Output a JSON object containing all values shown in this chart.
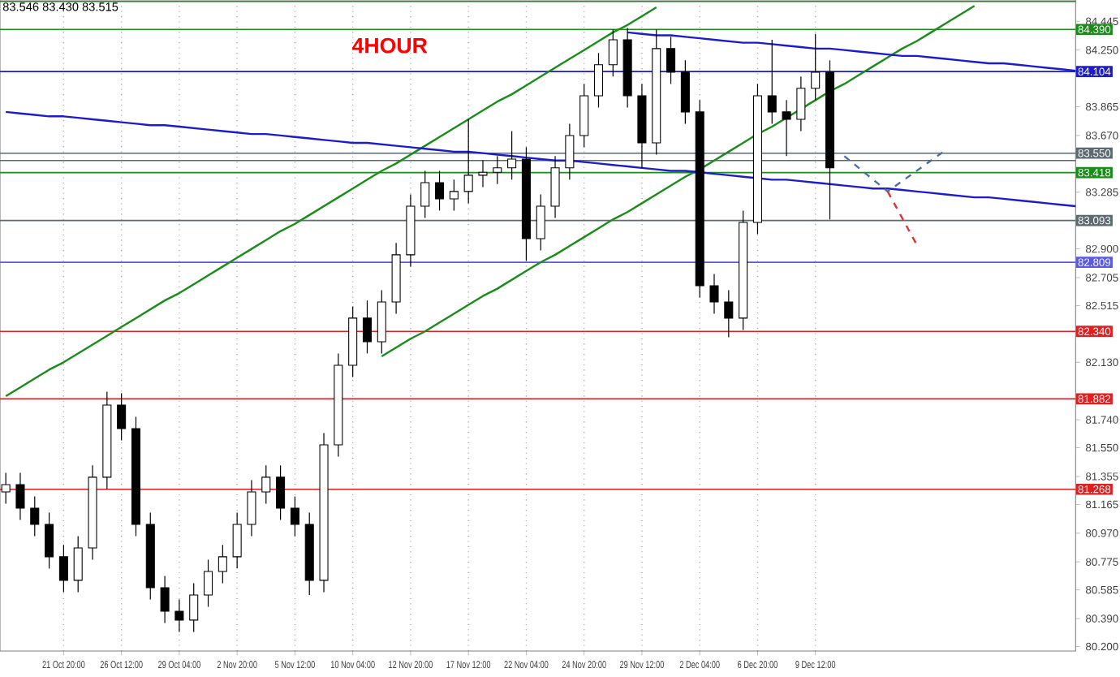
{
  "chart_data": {
    "type": "candlestick",
    "title": "4HOUR",
    "subtitle": "83.546 83.430 83.515",
    "categories": [
      null,
      null,
      null,
      null,
      "21 Oct 20:00",
      null,
      null,
      null,
      "26 Oct 12:00",
      null,
      null,
      null,
      "29 Oct 04:00",
      null,
      null,
      null,
      "2 Nov 20:00",
      null,
      null,
      null,
      "5 Nov 12:00",
      null,
      null,
      null,
      "10 Nov 04:00",
      null,
      null,
      null,
      "12 Nov 20:00",
      null,
      null,
      null,
      "17 Nov 12:00",
      null,
      null,
      null,
      "22 Nov 04:00",
      null,
      null,
      null,
      "24 Nov 20:00",
      null,
      null,
      null,
      "29 Nov 12:00",
      null,
      null,
      null,
      "2 Dec 04:00",
      null,
      null,
      null,
      "6 Dec 20:00",
      null,
      null,
      null,
      "9 Dec 12:00",
      null,
      null,
      null,
      null,
      null,
      null,
      null,
      null,
      null,
      null,
      null,
      null,
      null,
      null,
      null,
      null,
      null,
      null
    ],
    "ohlc": [
      [
        81.25,
        81.38,
        81.17,
        81.3
      ],
      [
        81.3,
        81.38,
        81.06,
        81.14
      ],
      [
        81.14,
        81.22,
        80.95,
        81.03
      ],
      [
        81.03,
        81.11,
        80.73,
        80.81
      ],
      [
        80.81,
        80.89,
        80.57,
        80.65
      ],
      [
        80.65,
        80.95,
        80.57,
        80.87
      ],
      [
        80.87,
        81.43,
        80.79,
        81.35
      ],
      [
        81.35,
        81.93,
        81.27,
        81.84
      ],
      [
        81.84,
        81.92,
        81.6,
        81.68
      ],
      [
        81.68,
        81.76,
        80.95,
        81.03
      ],
      [
        81.03,
        81.11,
        80.52,
        80.6
      ],
      [
        80.6,
        80.68,
        80.36,
        80.44
      ],
      [
        80.44,
        80.52,
        80.3,
        80.38
      ],
      [
        80.38,
        80.63,
        80.3,
        80.55
      ],
      [
        80.55,
        80.79,
        80.47,
        80.71
      ],
      [
        80.71,
        80.89,
        80.63,
        80.81
      ],
      [
        80.81,
        81.11,
        80.73,
        81.03
      ],
      [
        81.03,
        81.33,
        80.95,
        81.25
      ],
      [
        81.25,
        81.43,
        81.17,
        81.35
      ],
      [
        81.35,
        81.43,
        81.06,
        81.14
      ],
      [
        81.14,
        81.22,
        80.95,
        81.03
      ],
      [
        81.03,
        81.11,
        80.55,
        80.65
      ],
      [
        80.65,
        81.65,
        80.57,
        81.57
      ],
      [
        81.57,
        82.19,
        81.49,
        82.11
      ],
      [
        82.11,
        82.51,
        82.03,
        82.43
      ],
      [
        82.43,
        82.55,
        82.19,
        82.27
      ],
      [
        82.27,
        82.62,
        82.19,
        82.54
      ],
      [
        82.54,
        82.94,
        82.46,
        82.86
      ],
      [
        82.86,
        83.27,
        82.78,
        83.19
      ],
      [
        83.19,
        83.43,
        83.11,
        83.35
      ],
      [
        83.35,
        83.43,
        83.16,
        83.24
      ],
      [
        83.24,
        83.37,
        83.16,
        83.29
      ],
      [
        83.29,
        83.78,
        83.21,
        83.4
      ],
      [
        83.4,
        83.5,
        83.32,
        83.42
      ],
      [
        83.42,
        83.53,
        83.34,
        83.45
      ],
      [
        83.45,
        83.7,
        83.37,
        83.51
      ],
      [
        83.51,
        83.59,
        82.82,
        82.97
      ],
      [
        82.97,
        83.27,
        82.89,
        83.19
      ],
      [
        83.19,
        83.53,
        83.11,
        83.45
      ],
      [
        83.45,
        83.75,
        83.37,
        83.67
      ],
      [
        83.67,
        84.02,
        83.59,
        83.94
      ],
      [
        83.94,
        84.23,
        83.86,
        84.15
      ],
      [
        84.15,
        84.39,
        84.07,
        84.32
      ],
      [
        84.32,
        84.4,
        83.86,
        83.94
      ],
      [
        83.94,
        84.02,
        83.45,
        83.62
      ],
      [
        83.62,
        84.39,
        83.54,
        84.26
      ],
      [
        84.26,
        84.34,
        84.02,
        84.1
      ],
      [
        84.1,
        84.18,
        83.75,
        83.83
      ],
      [
        83.83,
        83.91,
        82.57,
        82.65
      ],
      [
        82.65,
        82.73,
        82.46,
        82.54
      ],
      [
        82.54,
        82.62,
        82.3,
        82.43
      ],
      [
        82.43,
        83.16,
        82.35,
        83.08
      ],
      [
        83.08,
        84.02,
        83.0,
        83.94
      ],
      [
        83.94,
        84.32,
        83.75,
        83.83
      ],
      [
        83.83,
        83.91,
        83.53,
        83.78
      ],
      [
        83.78,
        84.07,
        83.7,
        83.99
      ],
      [
        83.99,
        84.36,
        83.91,
        84.1
      ],
      [
        84.1,
        84.18,
        83.1,
        83.45
      ],
      null,
      null,
      null,
      null,
      null,
      null,
      null,
      null,
      null,
      null,
      null,
      null,
      null,
      null,
      null,
      null,
      null
    ],
    "series": [
      {
        "type": "line",
        "color": "#1a8c1a",
        "values": [
          81.9,
          81.96,
          82.02,
          82.08,
          82.13,
          82.19,
          82.25,
          82.31,
          82.37,
          82.43,
          82.49,
          82.55,
          82.6,
          82.66,
          82.72,
          82.78,
          82.84,
          82.9,
          82.96,
          83.02,
          83.07,
          83.13,
          83.19,
          83.25,
          83.31,
          83.37,
          83.43,
          83.48,
          83.54,
          83.6,
          83.66,
          83.72,
          83.78,
          83.84,
          83.9,
          83.95,
          84.01,
          84.07,
          84.13,
          84.19,
          84.25,
          84.31,
          84.37,
          84.42,
          84.48,
          84.54,
          null,
          null,
          null,
          null,
          null,
          null,
          null,
          null,
          null,
          null,
          null,
          null,
          null,
          null,
          null,
          null,
          null,
          null,
          null,
          null,
          null,
          null,
          null,
          null,
          null,
          null,
          null,
          null,
          null
        ]
      },
      {
        "type": "line",
        "color": "#1a8c1a",
        "values": [
          null,
          null,
          null,
          null,
          null,
          null,
          null,
          null,
          null,
          null,
          null,
          null,
          null,
          null,
          null,
          null,
          null,
          null,
          null,
          null,
          null,
          null,
          null,
          null,
          null,
          null,
          82.17,
          82.23,
          82.29,
          82.34,
          82.4,
          82.46,
          82.52,
          82.58,
          82.63,
          82.69,
          82.75,
          82.81,
          82.86,
          82.92,
          82.98,
          83.04,
          83.1,
          83.15,
          83.21,
          83.27,
          83.33,
          83.39,
          83.44,
          83.5,
          83.56,
          83.62,
          83.68,
          83.73,
          83.79,
          83.85,
          83.91,
          83.97,
          84.02,
          84.08,
          84.14,
          84.2,
          84.26,
          84.31,
          84.37,
          84.43,
          84.49,
          84.55,
          null,
          null,
          null,
          null,
          null,
          null,
          null
        ]
      },
      {
        "type": "line",
        "color": "#1c1ccc",
        "values": [
          null,
          null,
          null,
          null,
          null,
          null,
          null,
          null,
          null,
          null,
          null,
          null,
          null,
          null,
          null,
          null,
          null,
          null,
          null,
          null,
          null,
          null,
          null,
          null,
          null,
          null,
          null,
          null,
          null,
          null,
          null,
          null,
          null,
          null,
          null,
          null,
          null,
          null,
          null,
          null,
          null,
          null,
          null,
          84.37,
          84.36,
          84.35,
          84.35,
          84.34,
          84.33,
          84.32,
          84.31,
          84.3,
          84.3,
          84.29,
          84.28,
          84.27,
          84.26,
          84.26,
          84.25,
          84.24,
          84.23,
          84.22,
          84.21,
          84.21,
          84.2,
          84.19,
          84.18,
          84.17,
          84.16,
          84.16,
          84.15,
          84.14,
          84.13,
          84.12,
          84.11
        ]
      },
      {
        "type": "line",
        "color": "#1c1ccc",
        "values": [
          83.83,
          83.82,
          83.81,
          83.8,
          83.8,
          83.79,
          83.78,
          83.77,
          83.76,
          83.75,
          83.74,
          83.74,
          83.73,
          83.72,
          83.71,
          83.7,
          83.69,
          83.68,
          83.68,
          83.67,
          83.66,
          83.65,
          83.64,
          83.63,
          83.62,
          83.62,
          83.61,
          83.6,
          83.59,
          83.58,
          83.57,
          83.56,
          83.56,
          83.55,
          83.54,
          83.53,
          83.52,
          83.51,
          83.5,
          83.5,
          83.49,
          83.48,
          83.47,
          83.46,
          83.45,
          83.44,
          83.43,
          83.43,
          83.42,
          83.41,
          83.4,
          83.39,
          83.38,
          83.37,
          83.37,
          83.36,
          83.35,
          83.34,
          83.33,
          83.32,
          83.31,
          83.31,
          83.3,
          83.29,
          83.28,
          83.27,
          83.26,
          83.25,
          83.25,
          83.24,
          83.23,
          83.22,
          83.21,
          83.2,
          83.19
        ]
      },
      {
        "type": "line",
        "color": "#4a6fa5",
        "line_style": "dashed",
        "values": [
          null,
          null,
          null,
          null,
          null,
          null,
          null,
          null,
          null,
          null,
          null,
          null,
          null,
          null,
          null,
          null,
          null,
          null,
          null,
          null,
          null,
          null,
          null,
          null,
          null,
          null,
          null,
          null,
          null,
          null,
          null,
          null,
          null,
          null,
          null,
          null,
          null,
          null,
          null,
          null,
          null,
          null,
          null,
          null,
          null,
          null,
          null,
          null,
          null,
          null,
          null,
          null,
          null,
          null,
          null,
          null,
          null,
          null,
          83.53,
          83.45,
          83.37,
          83.29,
          83.36,
          83.43,
          83.5,
          83.57,
          null,
          null,
          null,
          null,
          null,
          null,
          null,
          null,
          null
        ]
      },
      {
        "type": "line",
        "color": "#e03030",
        "line_style": "dashed",
        "values": [
          null,
          null,
          null,
          null,
          null,
          null,
          null,
          null,
          null,
          null,
          null,
          null,
          null,
          null,
          null,
          null,
          null,
          null,
          null,
          null,
          null,
          null,
          null,
          null,
          null,
          null,
          null,
          null,
          null,
          null,
          null,
          null,
          null,
          null,
          null,
          null,
          null,
          null,
          null,
          null,
          null,
          null,
          null,
          null,
          null,
          null,
          null,
          null,
          null,
          null,
          null,
          null,
          null,
          null,
          null,
          null,
          null,
          null,
          null,
          null,
          null,
          83.29,
          83.11,
          82.93,
          null,
          null,
          null,
          null,
          null,
          null,
          null,
          null,
          null,
          null,
          null
        ]
      }
    ],
    "ylim": [
      80.17,
      84.59
    ],
    "yticks": [
      {
        "value": 84.445,
        "label": "84.445"
      },
      {
        "value": 84.25,
        "label": "84.250"
      },
      {
        "value": 83.865,
        "label": "83.865"
      },
      {
        "value": 83.67,
        "label": "83.670"
      },
      {
        "value": 83.285,
        "label": "83.285"
      },
      {
        "value": 82.9,
        "label": "82.900"
      },
      {
        "value": 82.705,
        "label": "82.705"
      },
      {
        "value": 82.515,
        "label": "82.515"
      },
      {
        "value": 82.13,
        "label": "82.130"
      },
      {
        "value": 81.74,
        "label": "81.740"
      },
      {
        "value": 81.55,
        "label": "81.550"
      },
      {
        "value": 81.355,
        "label": "81.355"
      },
      {
        "value": 81.165,
        "label": "81.165"
      },
      {
        "value": 80.97,
        "label": "80.970"
      },
      {
        "value": 80.775,
        "label": "80.775"
      },
      {
        "value": 80.585,
        "label": "80.585"
      },
      {
        "value": 80.39,
        "label": "80.390"
      },
      {
        "value": 80.2,
        "label": "80.200"
      }
    ],
    "ref_lines": [
      {
        "axis": "y",
        "value": 84.58,
        "color": "#1a8c1a"
      },
      {
        "axis": "y",
        "value": 84.39,
        "label": "84.390",
        "color": "#1a8c1a"
      },
      {
        "axis": "y",
        "value": 84.104,
        "label": "84.104",
        "color": "#1c1ccc"
      },
      {
        "axis": "y",
        "value": 83.55,
        "label": "83.550",
        "color": "#5a6a70"
      },
      {
        "axis": "y",
        "value": 83.5,
        "color": "#5a6a70"
      },
      {
        "axis": "y",
        "value": 83.418,
        "label": "83.418",
        "color": "#1a8c1a"
      },
      {
        "axis": "y",
        "value": 83.093,
        "label": "83.093",
        "color": "#5a6a70"
      },
      {
        "axis": "y",
        "value": 82.809,
        "label": "82.809",
        "color": "#5a5ae6"
      },
      {
        "axis": "y",
        "value": 82.34,
        "label": "82.340",
        "color": "#e02020"
      },
      {
        "axis": "y",
        "value": 81.882,
        "label": "81.882",
        "color": "#e02020"
      },
      {
        "axis": "y",
        "value": 81.268,
        "label": "81.268",
        "color": "#e02020"
      }
    ],
    "grid": "x"
  }
}
